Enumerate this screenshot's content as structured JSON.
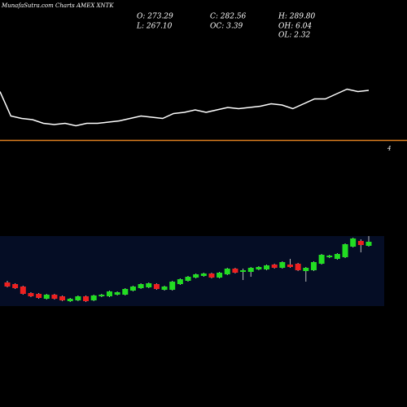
{
  "header": {
    "title": "MunafaSutra.com Charts AMEX XNTK",
    "stats": [
      "O: 273.29",
      "C: 282.56",
      "H: 289.80",
      "L: 267.10",
      "OC: 3.39",
      "OH: 6.04",
      "OL: 2.32"
    ]
  },
  "chart_data": [
    {
      "type": "line",
      "color": "#ffffff",
      "values": [
        75,
        55,
        53,
        52,
        49,
        48,
        49,
        47,
        49,
        49,
        50,
        51,
        53,
        55,
        54,
        53,
        57,
        58,
        60,
        58,
        60,
        62,
        61,
        62,
        63,
        65,
        64,
        61,
        65,
        69,
        69,
        73,
        77,
        75,
        76
      ],
      "ylim": [
        30,
        90
      ],
      "level": {
        "value": 35,
        "label": "4",
        "color": "#e08020"
      }
    },
    {
      "type": "candlestick",
      "up_color": "#22dd22",
      "down_color": "#ee2020",
      "open": [
        233,
        231,
        228,
        220,
        219,
        213,
        218,
        216,
        210,
        211,
        216,
        211,
        216,
        216,
        218,
        218,
        223,
        226,
        227,
        231,
        224,
        224,
        231,
        235,
        239,
        241,
        244,
        239,
        243,
        250,
        246,
        246,
        249,
        249,
        255,
        251,
        255,
        256,
        247,
        248,
        256,
        264,
        262,
        264,
        277,
        284,
        278
      ],
      "close": [
        228,
        226,
        219,
        216,
        214,
        218,
        213,
        211,
        213,
        216,
        210,
        217,
        218,
        222,
        221,
        225,
        228,
        231,
        232,
        225,
        228,
        234,
        237,
        240,
        243,
        244,
        239,
        245,
        250,
        245,
        248,
        251,
        252,
        254,
        251,
        258,
        252,
        248,
        251,
        258,
        267,
        266,
        268,
        280,
        287,
        279,
        283
      ],
      "high": [
        235,
        232,
        229,
        221,
        220,
        219,
        219,
        217,
        214,
        217,
        217,
        218,
        219,
        223,
        222,
        226,
        229,
        232,
        233,
        232,
        229,
        235,
        238,
        241,
        244,
        245,
        245,
        246,
        251,
        251,
        250,
        252,
        253,
        255,
        256,
        259,
        262,
        257,
        252,
        259,
        268,
        267,
        269,
        281,
        288,
        286,
        290
      ],
      "low": [
        227,
        225,
        218,
        215,
        213,
        212,
        212,
        210,
        209,
        210,
        209,
        210,
        215,
        215,
        217,
        217,
        222,
        225,
        226,
        224,
        223,
        223,
        230,
        234,
        238,
        240,
        238,
        238,
        242,
        244,
        236,
        240,
        248,
        248,
        250,
        250,
        251,
        247,
        234,
        247,
        255,
        263,
        261,
        263,
        276,
        270,
        277
      ],
      "ylim": [
        200,
        292
      ]
    }
  ]
}
